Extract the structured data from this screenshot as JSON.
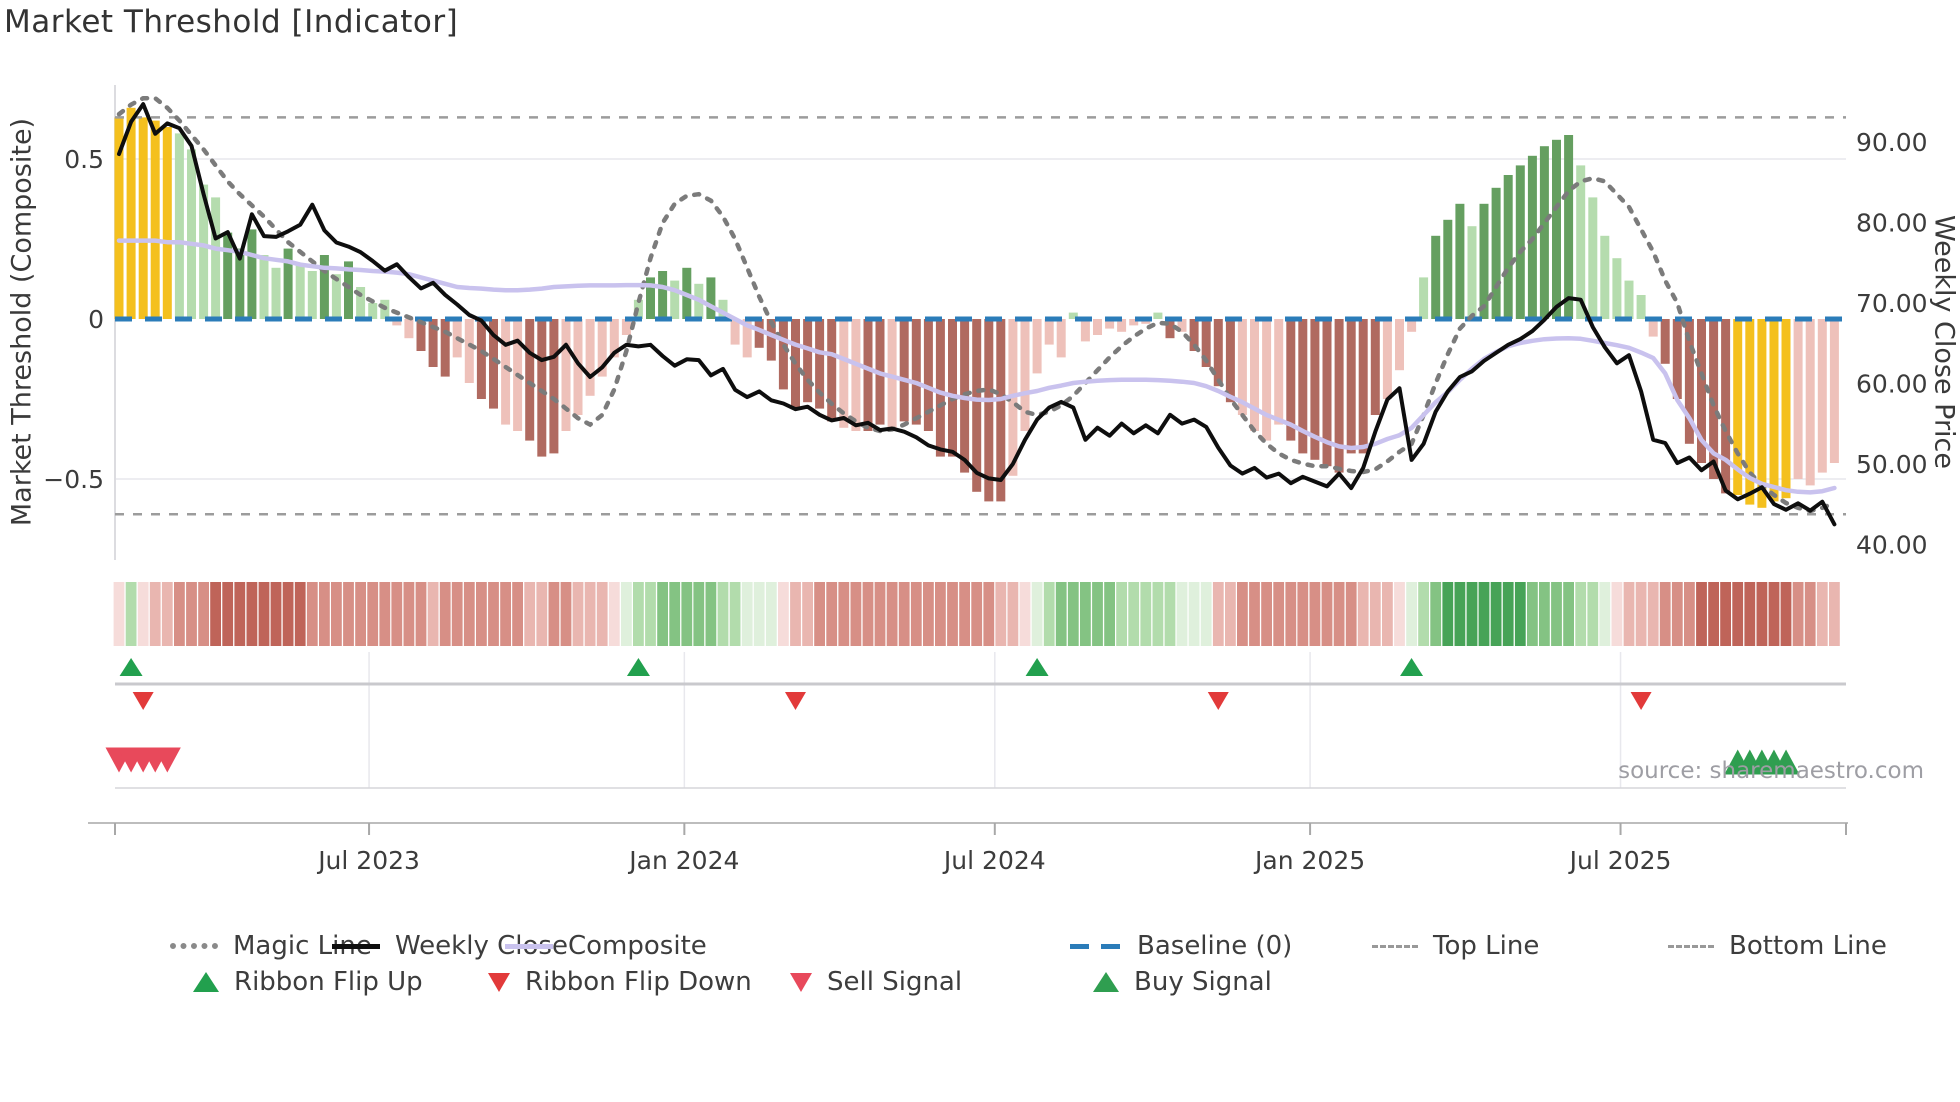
{
  "title": "Market Threshold [Indicator]",
  "source": "source: sharemaestro.com",
  "left_axis": {
    "title": "Market Threshold (Composite)",
    "ticks": [
      {
        "label": "0.5",
        "value": 0.5
      },
      {
        "label": "0",
        "value": 0
      },
      {
        "label": "−0.5",
        "value": -0.5
      }
    ]
  },
  "right_axis": {
    "title": "Weekly Close Price",
    "ticks": [
      {
        "label": "90.00",
        "value": 90
      },
      {
        "label": "80.00",
        "value": 80
      },
      {
        "label": "70.00",
        "value": 70
      },
      {
        "label": "60.00",
        "value": 60
      },
      {
        "label": "50.00",
        "value": 50
      },
      {
        "label": "40.00",
        "value": 40
      }
    ]
  },
  "x_axis": {
    "ticks": [
      {
        "label": "Jul 2023",
        "week": 20.7
      },
      {
        "label": "Jan 2024",
        "week": 46.8
      },
      {
        "label": "Jul 2024",
        "week": 72.5
      },
      {
        "label": "Jan 2025",
        "week": 98.6
      },
      {
        "label": "Jul 2025",
        "week": 124.3
      }
    ]
  },
  "legend": {
    "items": [
      {
        "kind": "magic",
        "label": "Magic Line"
      },
      {
        "kind": "weekly",
        "label": "Weekly Close"
      },
      {
        "kind": "composite",
        "label": "Composite"
      },
      {
        "kind": "baseline",
        "label": "Baseline (0)"
      },
      {
        "kind": "topline",
        "label": "Top Line"
      },
      {
        "kind": "bottomline",
        "label": "Bottom Line"
      },
      {
        "kind": "flipup",
        "label": "Ribbon Flip Up"
      },
      {
        "kind": "flipdown",
        "label": "Ribbon Flip Down"
      },
      {
        "kind": "sell",
        "label": "Sell Signal"
      },
      {
        "kind": "buy",
        "label": "Buy Signal"
      }
    ]
  },
  "chart_data": {
    "type": "combo",
    "series": [
      {
        "name": "Market Threshold bars",
        "type": "bar",
        "axis": "left",
        "key": "bar_values"
      },
      {
        "name": "Weekly Close",
        "type": "line",
        "axis": "right",
        "key": "weekly_close"
      },
      {
        "name": "Composite",
        "type": "line",
        "axis": "left",
        "key": "composite"
      },
      {
        "name": "Magic Line",
        "type": "line",
        "axis": "left",
        "key": "magic_line"
      }
    ],
    "left_ylim": [
      -0.75,
      0.75
    ],
    "right_ylim": [
      38,
      97
    ],
    "reference_lines": {
      "baseline": 0,
      "top_line": 0.63,
      "bottom_line": -0.61
    },
    "bar_values": [
      0.63,
      0.66,
      0.63,
      0.62,
      0.6,
      0.58,
      0.53,
      0.42,
      0.38,
      0.27,
      0.22,
      0.28,
      0.2,
      0.16,
      0.22,
      0.17,
      0.15,
      0.2,
      0.14,
      0.18,
      0.1,
      0.05,
      0.06,
      -0.02,
      -0.06,
      -0.1,
      -0.15,
      -0.18,
      -0.12,
      -0.2,
      -0.25,
      -0.28,
      -0.33,
      -0.35,
      -0.38,
      -0.43,
      -0.42,
      -0.35,
      -0.3,
      -0.24,
      -0.18,
      -0.12,
      -0.05,
      0.06,
      0.13,
      0.15,
      0.12,
      0.16,
      0.11,
      0.13,
      0.06,
      -0.08,
      -0.12,
      -0.09,
      -0.13,
      -0.22,
      -0.28,
      -0.26,
      -0.28,
      -0.32,
      -0.34,
      -0.35,
      -0.35,
      -0.33,
      -0.35,
      -0.32,
      -0.33,
      -0.35,
      -0.43,
      -0.43,
      -0.48,
      -0.54,
      -0.57,
      -0.57,
      -0.49,
      -0.35,
      -0.17,
      -0.08,
      -0.12,
      0.02,
      -0.07,
      -0.05,
      -0.03,
      -0.04,
      -0.02,
      -0.015,
      0.02,
      -0.06,
      -0.04,
      -0.1,
      -0.15,
      -0.21,
      -0.26,
      -0.3,
      -0.35,
      -0.38,
      -0.33,
      -0.38,
      -0.42,
      -0.44,
      -0.46,
      -0.48,
      -0.42,
      -0.42,
      -0.3,
      -0.25,
      -0.16,
      -0.04,
      0.13,
      0.26,
      0.31,
      0.36,
      0.29,
      0.36,
      0.41,
      0.45,
      0.48,
      0.51,
      0.54,
      0.56,
      0.575,
      0.48,
      0.38,
      0.26,
      0.19,
      0.12,
      0.075,
      -0.055,
      -0.14,
      -0.25,
      -0.39,
      -0.45,
      -0.5,
      -0.545,
      -0.55,
      -0.58,
      -0.59,
      -0.57,
      -0.56,
      -0.5,
      -0.52,
      -0.48,
      -0.45
    ],
    "bar_colors": [
      "Y",
      "Y",
      "Y",
      "Y",
      "Y",
      "LG",
      "LG",
      "LG",
      "LG",
      "DG",
      "DG",
      "DG",
      "LG",
      "LG",
      "DG",
      "LG",
      "LG",
      "DG",
      "LG",
      "DG",
      "LG",
      "LG",
      "LG",
      "LR",
      "LR",
      "DR",
      "DR",
      "DR",
      "LR",
      "LR",
      "DR",
      "DR",
      "LR",
      "LR",
      "DR",
      "DR",
      "DR",
      "LR",
      "LR",
      "LR",
      "LR",
      "LR",
      "LR",
      "LG",
      "DG",
      "DG",
      "LG",
      "DG",
      "LG",
      "DG",
      "LG",
      "LR",
      "LR",
      "DR",
      "DR",
      "DR",
      "DR",
      "DR",
      "DR",
      "DR",
      "LR",
      "LR",
      "DR",
      "DR",
      "LR",
      "DR",
      "DR",
      "DR",
      "DR",
      "DR",
      "DR",
      "DR",
      "DR",
      "DR",
      "LR",
      "LR",
      "LR",
      "LR",
      "LR",
      "LG",
      "LR",
      "LR",
      "LR",
      "LR",
      "LR",
      "LR",
      "LG",
      "DR",
      "LR",
      "DR",
      "DR",
      "DR",
      "DR",
      "LR",
      "LR",
      "LR",
      "LR",
      "DR",
      "DR",
      "DR",
      "DR",
      "DR",
      "DR",
      "DR",
      "DR",
      "LR",
      "LR",
      "LR",
      "LG",
      "DG",
      "DG",
      "DG",
      "LG",
      "DG",
      "DG",
      "DG",
      "DG",
      "DG",
      "DG",
      "DG",
      "DG",
      "LG",
      "LG",
      "LG",
      "LG",
      "LG",
      "LG",
      "LR",
      "DR",
      "DR",
      "DR",
      "DR",
      "DR",
      "DR",
      "Y",
      "Y",
      "Y",
      "Y",
      "Y",
      "LR",
      "LR",
      "LR",
      "LR"
    ],
    "weekly_close": [
      88.5,
      92.5,
      94.7,
      91.0,
      92.3,
      91.7,
      89.5,
      83.5,
      78.0,
      78.8,
      75.5,
      81.0,
      78.3,
      78.2,
      78.9,
      79.7,
      82.2,
      79.0,
      77.5,
      77.0,
      76.3,
      75.2,
      74.0,
      74.8,
      73.2,
      71.8,
      72.5,
      71.0,
      69.8,
      68.5,
      67.8,
      66.0,
      64.8,
      65.3,
      63.8,
      62.9,
      63.3,
      64.8,
      62.5,
      60.8,
      62.0,
      63.8,
      64.8,
      64.6,
      64.8,
      63.4,
      62.2,
      63.0,
      62.9,
      61.0,
      61.8,
      59.2,
      58.3,
      59.0,
      57.9,
      57.5,
      56.8,
      57.1,
      56.1,
      55.4,
      55.7,
      54.8,
      55.1,
      54.2,
      54.4,
      54.0,
      53.3,
      52.3,
      51.8,
      51.5,
      50.5,
      48.9,
      48.2,
      48.0,
      50.0,
      53.0,
      55.5,
      57.0,
      57.7,
      57.0,
      53.0,
      54.5,
      53.5,
      55.0,
      53.8,
      54.8,
      53.8,
      56.1,
      55.0,
      55.5,
      54.6,
      52.0,
      49.8,
      48.8,
      49.5,
      48.3,
      48.8,
      47.6,
      48.4,
      47.8,
      47.2,
      48.8,
      47.0,
      49.5,
      54.0,
      58.0,
      59.4,
      50.5,
      52.5,
      56.5,
      59.0,
      60.8,
      61.5,
      62.8,
      63.8,
      64.8,
      65.5,
      66.5,
      67.9,
      69.5,
      70.6,
      70.4,
      67.0,
      64.5,
      62.5,
      63.5,
      59.0,
      53.0,
      52.6,
      50.1,
      50.8,
      49.2,
      50.3,
      46.7,
      45.6,
      46.3,
      47.1,
      45.0,
      44.3,
      45.1,
      44.2,
      45.3,
      42.5
    ],
    "composite": [
      0.245,
      0.245,
      0.245,
      0.245,
      0.24,
      0.24,
      0.235,
      0.23,
      0.22,
      0.215,
      0.21,
      0.2,
      0.19,
      0.185,
      0.18,
      0.17,
      0.165,
      0.16,
      0.158,
      0.155,
      0.153,
      0.15,
      0.148,
      0.145,
      0.14,
      0.13,
      0.12,
      0.11,
      0.1,
      0.097,
      0.095,
      0.092,
      0.09,
      0.09,
      0.092,
      0.095,
      0.1,
      0.102,
      0.104,
      0.105,
      0.105,
      0.105,
      0.106,
      0.106,
      0.105,
      0.1,
      0.09,
      0.075,
      0.06,
      0.04,
      0.02,
      0.0,
      -0.02,
      -0.034,
      -0.05,
      -0.065,
      -0.08,
      -0.092,
      -0.104,
      -0.11,
      -0.125,
      -0.14,
      -0.155,
      -0.17,
      -0.18,
      -0.19,
      -0.2,
      -0.215,
      -0.23,
      -0.24,
      -0.247,
      -0.252,
      -0.253,
      -0.25,
      -0.24,
      -0.232,
      -0.225,
      -0.215,
      -0.208,
      -0.2,
      -0.196,
      -0.193,
      -0.191,
      -0.19,
      -0.19,
      -0.19,
      -0.191,
      -0.193,
      -0.196,
      -0.2,
      -0.21,
      -0.225,
      -0.243,
      -0.26,
      -0.28,
      -0.3,
      -0.315,
      -0.33,
      -0.35,
      -0.368,
      -0.385,
      -0.398,
      -0.403,
      -0.4,
      -0.39,
      -0.375,
      -0.363,
      -0.34,
      -0.3,
      -0.26,
      -0.228,
      -0.19,
      -0.155,
      -0.125,
      -0.103,
      -0.085,
      -0.075,
      -0.068,
      -0.063,
      -0.061,
      -0.06,
      -0.062,
      -0.068,
      -0.075,
      -0.082,
      -0.09,
      -0.105,
      -0.122,
      -0.17,
      -0.253,
      -0.31,
      -0.378,
      -0.42,
      -0.44,
      -0.47,
      -0.497,
      -0.515,
      -0.525,
      -0.535,
      -0.54,
      -0.542,
      -0.538,
      -0.528
    ],
    "magic_line": [
      0.64,
      0.67,
      0.69,
      0.69,
      0.66,
      0.62,
      0.575,
      0.53,
      0.48,
      0.43,
      0.39,
      0.355,
      0.32,
      0.28,
      0.24,
      0.21,
      0.18,
      0.15,
      0.125,
      0.1,
      0.075,
      0.055,
      0.035,
      0.02,
      0.005,
      -0.01,
      -0.025,
      -0.04,
      -0.06,
      -0.08,
      -0.1,
      -0.125,
      -0.15,
      -0.175,
      -0.2,
      -0.225,
      -0.25,
      -0.28,
      -0.31,
      -0.33,
      -0.3,
      -0.22,
      -0.1,
      0.05,
      0.19,
      0.3,
      0.36,
      0.385,
      0.39,
      0.37,
      0.32,
      0.25,
      0.16,
      0.07,
      -0.01,
      -0.08,
      -0.14,
      -0.19,
      -0.23,
      -0.265,
      -0.295,
      -0.32,
      -0.34,
      -0.35,
      -0.345,
      -0.33,
      -0.31,
      -0.29,
      -0.27,
      -0.25,
      -0.235,
      -0.225,
      -0.22,
      -0.235,
      -0.26,
      -0.29,
      -0.3,
      -0.29,
      -0.27,
      -0.24,
      -0.2,
      -0.16,
      -0.12,
      -0.085,
      -0.055,
      -0.03,
      -0.012,
      -0.015,
      -0.04,
      -0.08,
      -0.13,
      -0.19,
      -0.25,
      -0.3,
      -0.35,
      -0.39,
      -0.42,
      -0.44,
      -0.452,
      -0.46,
      -0.46,
      -0.468,
      -0.475,
      -0.478,
      -0.47,
      -0.445,
      -0.415,
      -0.39,
      -0.3,
      -0.2,
      -0.11,
      -0.03,
      0.01,
      0.04,
      0.1,
      0.16,
      0.21,
      0.25,
      0.3,
      0.35,
      0.4,
      0.43,
      0.44,
      0.43,
      0.39,
      0.35,
      0.28,
      0.21,
      0.12,
      0.05,
      -0.07,
      -0.17,
      -0.27,
      -0.35,
      -0.42,
      -0.48,
      -0.52,
      -0.55,
      -0.575,
      -0.59,
      -0.6,
      -0.59,
      -0.575
    ],
    "ribbon_colors": [
      "p0",
      "g1",
      "p0",
      "r1",
      "r1",
      "r2",
      "r2",
      "r2",
      "r3",
      "r3",
      "r3",
      "r3",
      "r3",
      "r3",
      "r3",
      "r3",
      "r2",
      "r2",
      "r2",
      "r2",
      "r2",
      "r2",
      "r2",
      "r2",
      "r2",
      "r2",
      "r1",
      "r2",
      "r2",
      "r2",
      "r2",
      "r2",
      "r2",
      "r2",
      "r1",
      "r1",
      "r2",
      "r2",
      "r1",
      "r1",
      "r1",
      "p0",
      "g0",
      "g1",
      "g1",
      "g2",
      "g2",
      "g2",
      "g2",
      "g2",
      "g1",
      "g1",
      "g0",
      "g0",
      "g0",
      "p0",
      "r1",
      "r1",
      "r2",
      "r2",
      "r2",
      "r2",
      "r2",
      "r2",
      "r2",
      "r2",
      "r2",
      "r2",
      "r2",
      "r2",
      "r2",
      "r2",
      "r2",
      "r1",
      "r1",
      "p0",
      "g0",
      "g1",
      "g2",
      "g2",
      "g2",
      "g2",
      "g2",
      "g1",
      "g1",
      "g1",
      "g1",
      "g1",
      "g0",
      "g0",
      "g0",
      "r1",
      "r1",
      "r2",
      "r2",
      "r2",
      "r2",
      "r2",
      "r2",
      "r2",
      "r2",
      "r2",
      "r2",
      "r1",
      "r1",
      "r1",
      "p0",
      "g0",
      "g1",
      "g2",
      "g3",
      "g3",
      "g3",
      "g3",
      "g3",
      "g3",
      "g3",
      "g2",
      "g2",
      "g2",
      "g2",
      "g1",
      "g1",
      "g0",
      "p0",
      "r1",
      "r1",
      "r1",
      "r2",
      "r2",
      "r2",
      "r3",
      "r3",
      "r3",
      "r3",
      "r3",
      "r3",
      "r3",
      "r3",
      "r2",
      "r2",
      "r1",
      "r1"
    ],
    "signals": {
      "flip_up_weeks": [
        1,
        43,
        76,
        107
      ],
      "flip_down_weeks": [
        2,
        56,
        91,
        126
      ],
      "sell_weeks": [
        0,
        1,
        2,
        3,
        4
      ],
      "buy_weeks": [
        134,
        135,
        136,
        137,
        138
      ]
    },
    "palette": {
      "bars": {
        "Y": "#f4c01e",
        "LG": "#b5dcae",
        "DG": "#659f60",
        "LR": "#eec1ba",
        "DR": "#b06a60"
      },
      "ribbon": {
        "p0": "#f6dcda",
        "r1": "#e9b6b0",
        "r2": "#d78f86",
        "r3": "#bf6459",
        "g0": "#dff0dc",
        "g1": "#b2dcac",
        "g2": "#84c383",
        "g3": "#47a357"
      },
      "lines": {
        "magic": "#7b7b7b",
        "weekly": "#0e0e0e",
        "composite": "#c9c2ee",
        "baseline": "#2b7cb9",
        "reference": "#9c9c9c"
      },
      "signals": {
        "flip_up": "#22a04e",
        "flip_down": "#e23a3a",
        "sell": "#e8495b",
        "buy": "#2f9e50"
      }
    }
  }
}
